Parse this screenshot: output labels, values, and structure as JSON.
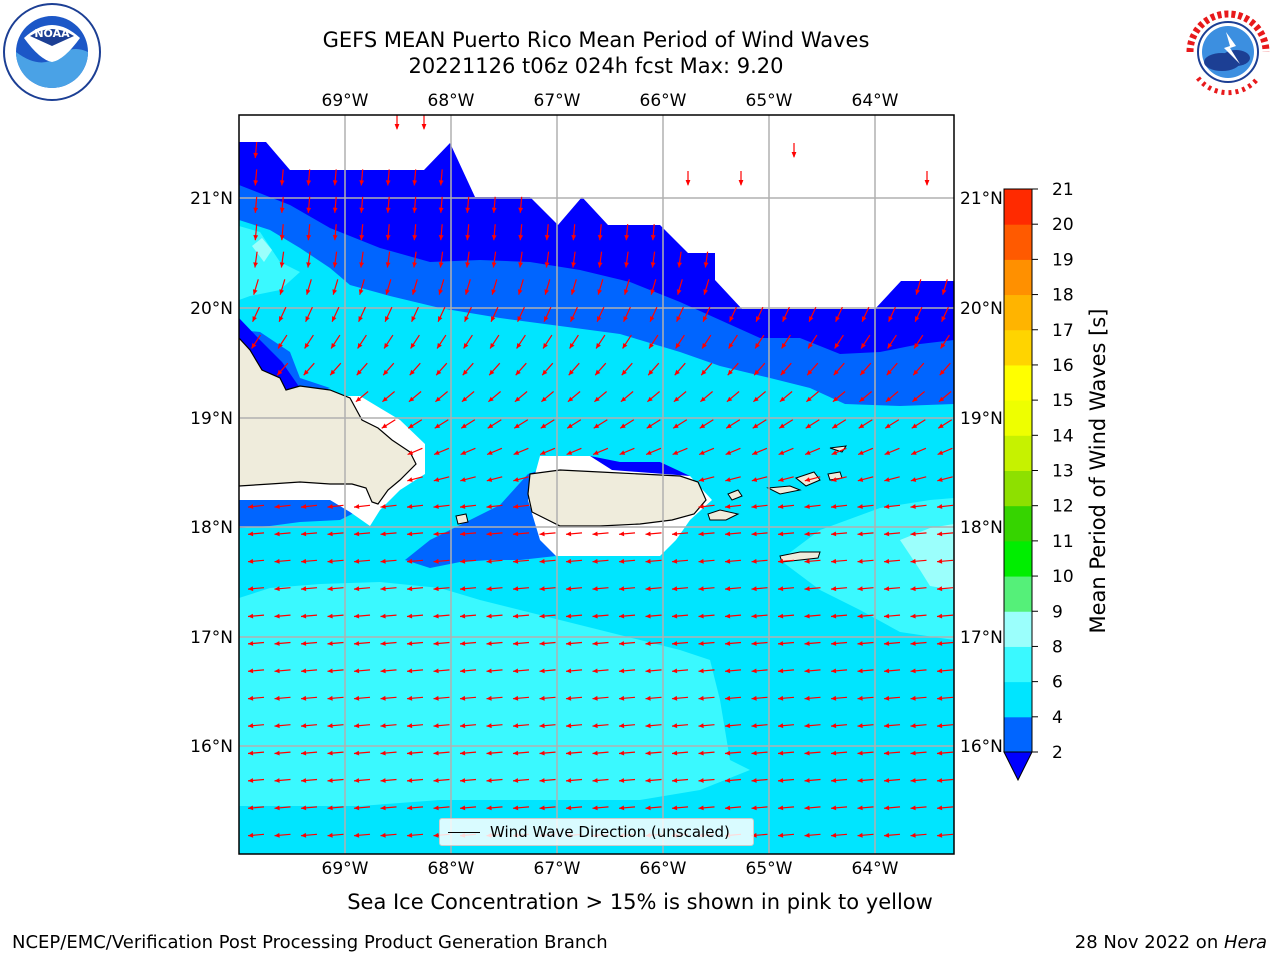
{
  "title": {
    "line1": "GEFS MEAN Puerto Rico Mean Period of Wind Waves",
    "line2": "20221126 t06z 024h fcst   Max: 9.20"
  },
  "axes": {
    "lon_ticks": [
      "69°W",
      "68°W",
      "67°W",
      "66°W",
      "65°W",
      "64°W"
    ],
    "lat_ticks": [
      "21°N",
      "20°N",
      "19°N",
      "18°N",
      "17°N",
      "16°N"
    ]
  },
  "legend": {
    "label": "Wind Wave Direction (unscaled)"
  },
  "colorbar": {
    "label": "Mean Period of Wind Waves [s]",
    "ticks": [
      "2",
      "4",
      "6",
      "8",
      "9",
      "10",
      "11",
      "12",
      "13",
      "14",
      "15",
      "16",
      "17",
      "18",
      "19",
      "20",
      "21"
    ],
    "colors": [
      "#0065ff",
      "#00e5ff",
      "#3af9ff",
      "#9bfffc",
      "#55f079",
      "#00ee00",
      "#36d400",
      "#8ee000",
      "#c6f200",
      "#eeff00",
      "#ffff00",
      "#ffd400",
      "#ffb400",
      "#ff9000",
      "#ff5a00",
      "#ff2a00"
    ],
    "under_color": "#0000ff"
  },
  "bottom_note": "Sea Ice Concentration > 15% is shown in pink to yellow",
  "footer": {
    "left": "NCEP/EMC/Verification Post Processing Product Generation Branch",
    "date": "28 Nov 2022 on ",
    "host": "Hera"
  },
  "colors": {
    "deep_blue": "#0000ff",
    "blue": "#0065ff",
    "cyan": "#00e5ff",
    "light_cyan": "#3af9ff",
    "land": "#efecdc",
    "arrow": "#ff0000"
  }
}
